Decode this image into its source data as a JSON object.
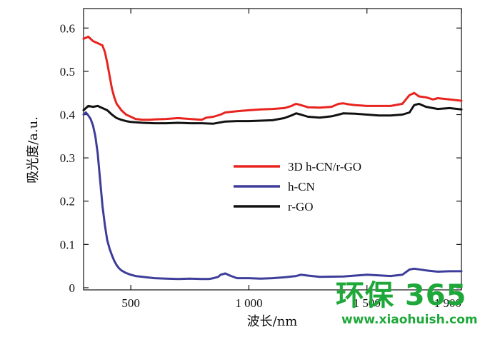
{
  "chart_data": {
    "type": "line",
    "xlabel": "波长/nm",
    "ylabel": "吸光度/a.u.",
    "xlim": [
      300,
      1900
    ],
    "ylim": [
      -0.005,
      0.645
    ],
    "xticks": [
      500,
      1000,
      1500,
      1900
    ],
    "xtick_labels": [
      "500",
      "1 000",
      "1 500",
      "1 900"
    ],
    "yticks": [
      0,
      0.1,
      0.2,
      0.3,
      0.4,
      0.5,
      0.6
    ],
    "ytick_labels": [
      "0",
      "0.1",
      "0.2",
      "0.3",
      "0.4",
      "0.5",
      "0.6"
    ],
    "legend_position": "center-right",
    "series": [
      {
        "name": "3D h-CN/r-GO",
        "color": "#e8241f",
        "x": [
          300,
          320,
          340,
          360,
          380,
          390,
          400,
          410,
          420,
          430,
          440,
          460,
          480,
          500,
          520,
          550,
          580,
          600,
          650,
          700,
          750,
          800,
          820,
          850,
          880,
          900,
          950,
          1000,
          1050,
          1100,
          1150,
          1180,
          1200,
          1220,
          1250,
          1300,
          1350,
          1380,
          1400,
          1420,
          1450,
          1500,
          1550,
          1600,
          1650,
          1680,
          1700,
          1720,
          1750,
          1780,
          1800,
          1850,
          1900
        ],
        "y": [
          0.575,
          0.58,
          0.57,
          0.565,
          0.56,
          0.545,
          0.52,
          0.49,
          0.46,
          0.44,
          0.425,
          0.41,
          0.4,
          0.395,
          0.39,
          0.388,
          0.388,
          0.389,
          0.39,
          0.392,
          0.39,
          0.388,
          0.393,
          0.395,
          0.4,
          0.405,
          0.408,
          0.41,
          0.412,
          0.413,
          0.415,
          0.42,
          0.425,
          0.422,
          0.417,
          0.416,
          0.418,
          0.425,
          0.426,
          0.424,
          0.422,
          0.42,
          0.42,
          0.42,
          0.425,
          0.445,
          0.45,
          0.442,
          0.44,
          0.435,
          0.438,
          0.435,
          0.432
        ]
      },
      {
        "name": "h-CN",
        "color": "#3d3d9a",
        "x": [
          300,
          310,
          320,
          330,
          340,
          350,
          360,
          370,
          380,
          390,
          400,
          410,
          420,
          430,
          440,
          450,
          460,
          480,
          500,
          520,
          550,
          600,
          650,
          700,
          750,
          800,
          830,
          850,
          870,
          880,
          900,
          920,
          950,
          1000,
          1050,
          1100,
          1150,
          1200,
          1220,
          1250,
          1300,
          1400,
          1450,
          1500,
          1600,
          1650,
          1680,
          1700,
          1750,
          1800,
          1850,
          1900
        ],
        "y": [
          0.4,
          0.405,
          0.398,
          0.39,
          0.375,
          0.35,
          0.31,
          0.25,
          0.19,
          0.145,
          0.11,
          0.09,
          0.075,
          0.062,
          0.052,
          0.045,
          0.04,
          0.034,
          0.03,
          0.027,
          0.025,
          0.022,
          0.021,
          0.02,
          0.021,
          0.02,
          0.02,
          0.022,
          0.025,
          0.03,
          0.033,
          0.028,
          0.022,
          0.022,
          0.021,
          0.022,
          0.024,
          0.027,
          0.03,
          0.028,
          0.025,
          0.026,
          0.028,
          0.03,
          0.027,
          0.03,
          0.042,
          0.044,
          0.04,
          0.037,
          0.038,
          0.038
        ]
      },
      {
        "name": "r-GO",
        "color": "#111111",
        "x": [
          300,
          320,
          340,
          360,
          380,
          400,
          420,
          440,
          460,
          480,
          500,
          550,
          600,
          650,
          700,
          750,
          800,
          850,
          880,
          900,
          950,
          1000,
          1050,
          1100,
          1150,
          1180,
          1200,
          1220,
          1250,
          1300,
          1350,
          1380,
          1400,
          1450,
          1500,
          1550,
          1600,
          1650,
          1680,
          1700,
          1720,
          1750,
          1800,
          1850,
          1900
        ],
        "y": [
          0.41,
          0.42,
          0.418,
          0.42,
          0.415,
          0.41,
          0.4,
          0.392,
          0.388,
          0.385,
          0.383,
          0.381,
          0.38,
          0.38,
          0.381,
          0.38,
          0.38,
          0.379,
          0.382,
          0.384,
          0.385,
          0.385,
          0.386,
          0.387,
          0.392,
          0.398,
          0.403,
          0.4,
          0.395,
          0.393,
          0.396,
          0.4,
          0.403,
          0.402,
          0.4,
          0.398,
          0.398,
          0.4,
          0.405,
          0.422,
          0.425,
          0.418,
          0.413,
          0.415,
          0.412
        ]
      }
    ]
  },
  "watermark": {
    "logo_text": "环保 365",
    "url_text": "www.xiaohuish.com"
  }
}
